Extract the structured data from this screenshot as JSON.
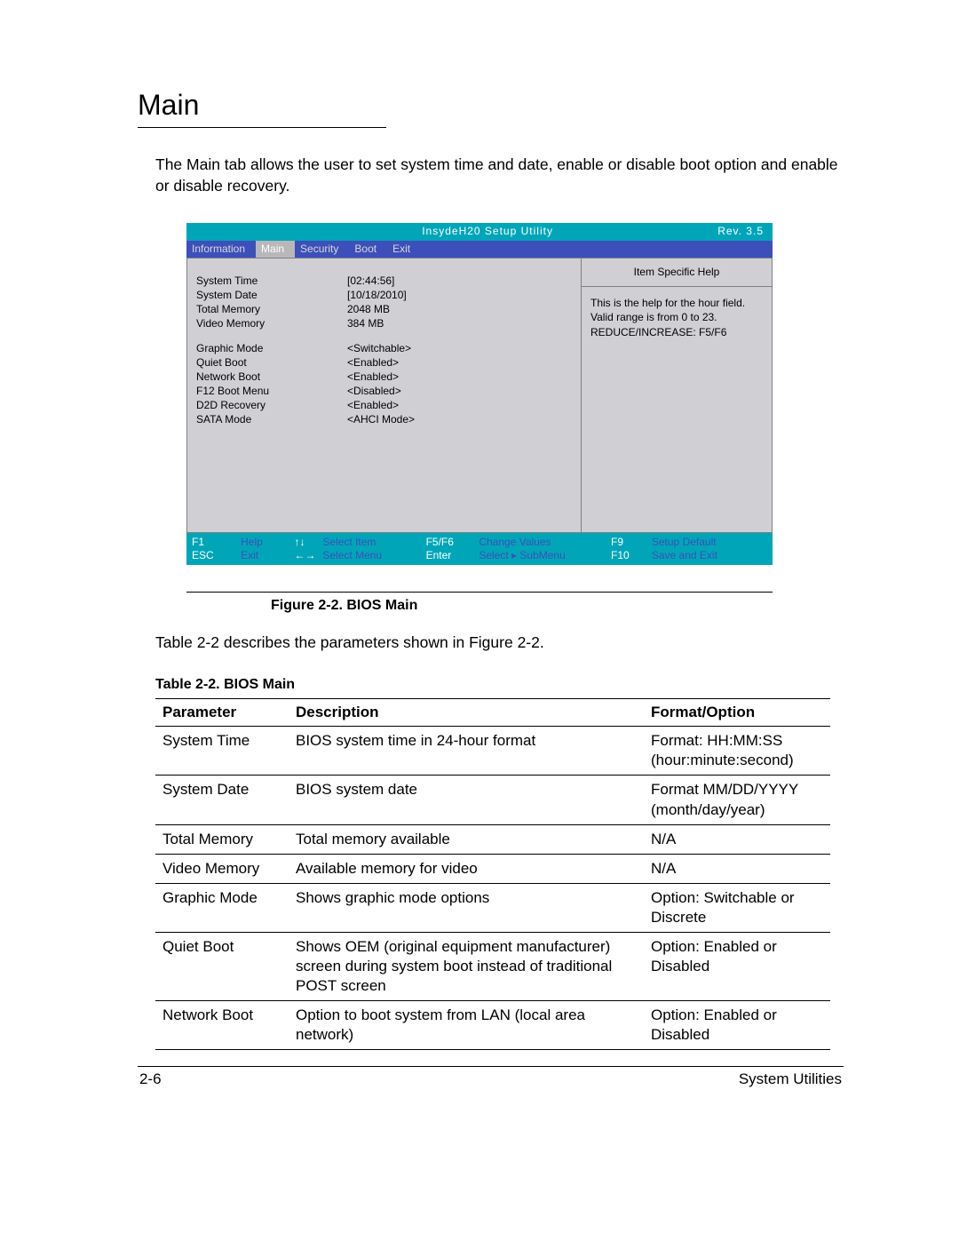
{
  "section_title": "Main",
  "intro_text": "The Main tab allows the user to set system time and date, enable or disable boot option and enable or disable recovery.",
  "bios": {
    "header_title": "InsydeH20 Setup Utility",
    "header_rev": "Rev. 3.5",
    "tabs": [
      "Information",
      "Main",
      "Security",
      "Boot",
      "Exit"
    ],
    "active_tab_index": 1,
    "group1": [
      {
        "label": "System Time",
        "value": "[02:44:56]"
      },
      {
        "label": "System Date",
        "value": "[10/18/2010]"
      },
      {
        "label": "Total Memory",
        "value": "2048 MB"
      },
      {
        "label": "Video Memory",
        "value": "384 MB"
      }
    ],
    "group2": [
      {
        "label": "Graphic Mode",
        "value": "<Switchable>"
      },
      {
        "label": "Quiet Boot",
        "value": "<Enabled>"
      },
      {
        "label": "Network Boot",
        "value": "<Enabled>"
      },
      {
        "label": "F12 Boot Menu",
        "value": "<Disabled>"
      },
      {
        "label": "D2D Recovery",
        "value": "<Enabled>"
      },
      {
        "label": "SATA Mode",
        "value": "<AHCI Mode>"
      }
    ],
    "help_header": "Item Specific Help",
    "help_body": "This is the help for the hour field. Valid range is from 0 to 23. REDUCE/INCREASE: F5/F6",
    "footer": {
      "row1": [
        {
          "k": "F1",
          "d": "Help"
        },
        {
          "k": "↑↓",
          "d": "Select Item"
        },
        {
          "k": "F5/F6",
          "d": "Change Values"
        },
        {
          "k": "F9",
          "d": "Setup Default"
        }
      ],
      "row2": [
        {
          "k": "ESC",
          "d": "Exit"
        },
        {
          "k": "←→",
          "d": "Select Menu"
        },
        {
          "k": "Enter",
          "d": "Select ▸ SubMenu"
        },
        {
          "k": "F10",
          "d": "Save and Exit"
        }
      ]
    }
  },
  "figure_caption": "Figure 2-2.   BIOS Main",
  "after_figure_text": "Table 2-2 describes the parameters shown in Figure 2-2.",
  "table_caption": "Table 2-2.   BIOS Main",
  "table": {
    "headers": [
      "Parameter",
      "Description",
      "Format/Option"
    ],
    "rows": [
      [
        "System Time",
        "BIOS system time in 24-hour format",
        "Format: HH:MM:SS (hour:minute:second)"
      ],
      [
        "System Date",
        "BIOS system date",
        "Format MM/DD/YYYY (month/day/year)"
      ],
      [
        "Total Memory",
        "Total memory available",
        "N/A"
      ],
      [
        "Video Memory",
        "Available memory for video",
        "N/A"
      ],
      [
        "Graphic Mode",
        "Shows graphic mode options",
        "Option: Switchable or Discrete"
      ],
      [
        "Quiet Boot",
        "Shows OEM (original equipment manufacturer) screen during system boot instead of traditional POST screen",
        "Option: Enabled or Disabled"
      ],
      [
        "Network Boot",
        "Option to boot system from LAN (local area network)",
        "Option: Enabled or Disabled"
      ]
    ]
  },
  "page_footer_left": "2-6",
  "page_footer_right": "System Utilities",
  "colors": {
    "teal": "#00a6b8",
    "blue": "#3d4fbb",
    "bios_bg": "#d0d0d4",
    "tab_active": "#b8b8b8"
  }
}
